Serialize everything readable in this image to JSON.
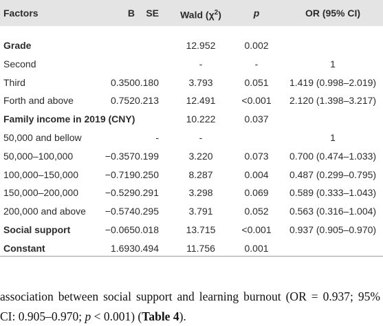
{
  "table": {
    "header": [
      "Factors",
      "B",
      "SE",
      {
        "text": "Wald (χ",
        "sup": "2",
        "after": ")"
      },
      "p",
      "OR (95% CI)"
    ],
    "rows": [
      {
        "bold": true,
        "cells": [
          "Grade",
          null,
          null,
          "12.952",
          "0.002",
          null
        ]
      },
      {
        "bold": false,
        "cells": [
          "Second",
          null,
          null,
          "-",
          "-",
          "1"
        ]
      },
      {
        "bold": false,
        "cells": [
          "Third",
          "0.350",
          "0.180",
          "3.793",
          "0.051",
          "1.419 (0.998–2.019)"
        ]
      },
      {
        "bold": false,
        "cells": [
          "Forth and above",
          "0.752",
          "0.213",
          "12.491",
          "<0.001",
          "2.120 (1.398–3.217)"
        ]
      },
      {
        "bold": true,
        "cells": [
          "Family income in 2019 (CNY)",
          null,
          null,
          "10.222",
          "0.037",
          null
        ]
      },
      {
        "bold": false,
        "cells": [
          "50,000 and bellow",
          null,
          "-",
          "-",
          null,
          "1"
        ]
      },
      {
        "bold": false,
        "cells": [
          "50,000–100,000",
          "−0.357",
          "0.199",
          "3.220",
          "0.073",
          "0.700 (0.474–1.033)"
        ]
      },
      {
        "bold": false,
        "cells": [
          "100,000–150,000",
          "−0.719",
          "0.250",
          "8.287",
          "0.004",
          "0.487 (0.299–0.795)"
        ]
      },
      {
        "bold": false,
        "cells": [
          "150,000–200,000",
          "−0.529",
          "0.291",
          "3.298",
          "0.069",
          "0.589 (0.333–1.043)"
        ]
      },
      {
        "bold": false,
        "cells": [
          "200,000 and above",
          "−0.574",
          "0.295",
          "3.791",
          "0.052",
          "0.563 (0.316–1.004)"
        ]
      },
      {
        "bold": true,
        "cells": [
          "Social support",
          "−0.065",
          "0.018",
          "13.715",
          "<0.001",
          "0.937 (0.905–0.970)"
        ]
      },
      {
        "bold": true,
        "cells": [
          "Constant",
          "1.693",
          "0.494",
          "11.756",
          "0.001",
          null
        ]
      }
    ]
  },
  "paragraph": [
    {
      "text": "association between social support and learning burnout (OR = 0.937; 95% CI: 0.905–0.970; "
    },
    {
      "text": "p",
      "italic": true
    },
    {
      "text": " < 0.001) ("
    },
    {
      "text": "Table 4",
      "bold": true
    },
    {
      "text": ")."
    }
  ]
}
